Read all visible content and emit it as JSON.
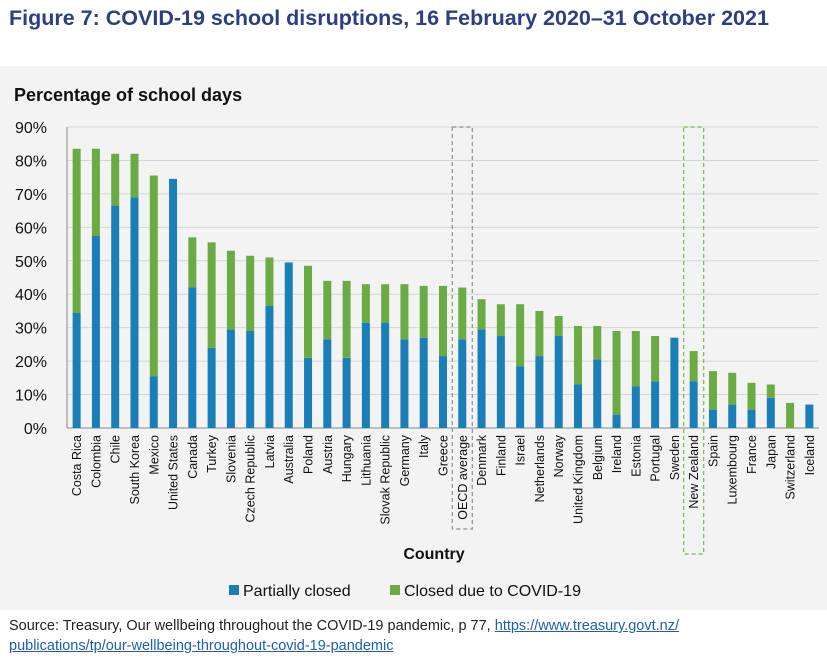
{
  "figure": {
    "title": "Figure 7: COVID-19 school disruptions, 16 February 2020–31 October 2021",
    "source_text": "Source: Treasury, Our wellbeing throughout the COVID-19 pandemic, p 77,",
    "source_link": "https://www.treasury.govt.nz/publications/tp/our-wellbeing-throughout-covid-19-pandemic",
    "source_link_line1": "https://www.treasury.govt.nz/",
    "source_link_line2": "publications/tp/our-wellbeing-throughout-covid-19-pandemic"
  },
  "chart_data": {
    "type": "bar",
    "stacked": true,
    "ylabel": "Percentage of school days",
    "xlabel": "Country",
    "ylim": [
      0,
      90
    ],
    "yticks": [
      "0%",
      "10%",
      "20%",
      "30%",
      "40%",
      "50%",
      "60%",
      "70%",
      "80%",
      "90%"
    ],
    "grid": true,
    "legend_position": "bottom",
    "colors": {
      "partially": "#1a7fb6",
      "closed": "#6bab44",
      "highlight": "#8f8f8f",
      "highlight_nz": "#79b753"
    },
    "highlighted": [
      "OECD average",
      "New Zealand"
    ],
    "categories": [
      "Costa Rica",
      "Colombia",
      "Chile",
      "South Korea",
      "Mexico",
      "United States",
      "Canada",
      "Turkey",
      "Slovenia",
      "Czech Republic",
      "Latvia",
      "Australia",
      "Poland",
      "Austria",
      "Hungary",
      "Lithuania",
      "Slovak Republic",
      "Germany",
      "Italy",
      "Greece",
      "OECD average",
      "Denmark",
      "Finland",
      "Israel",
      "Netherlands",
      "Norway",
      "United Kingdom",
      "Belgium",
      "Ireland",
      "Estonia",
      "Portugal",
      "Sweden",
      "New Zealand",
      "Spain",
      "Luxembourg",
      "France",
      "Japan",
      "Switzerland",
      "Iceland"
    ],
    "series": [
      {
        "name": "Partially closed",
        "values": [
          34.5,
          57.5,
          66.5,
          69,
          15.5,
          74.5,
          42,
          24,
          29.5,
          29,
          36.5,
          49.5,
          21,
          26.5,
          21,
          31.5,
          31.5,
          26.5,
          27,
          21.5,
          26.5,
          29.5,
          27.5,
          18.5,
          21.5,
          27.5,
          13,
          20.5,
          4,
          12.5,
          14,
          27,
          14,
          5.5,
          7,
          5.5,
          9,
          0,
          7
        ]
      },
      {
        "name": "Closed due to COVID-19",
        "values": [
          49,
          26,
          15.5,
          13,
          60,
          0,
          15,
          31.5,
          23.5,
          22.5,
          14.5,
          0,
          27.5,
          17.5,
          23,
          11.5,
          11.5,
          16.5,
          15.5,
          21,
          15.5,
          9,
          9.5,
          18.5,
          13.5,
          6,
          17.5,
          10,
          25,
          16.5,
          13.5,
          0,
          9,
          11.5,
          9.5,
          8,
          4,
          7.5,
          0
        ]
      }
    ]
  }
}
